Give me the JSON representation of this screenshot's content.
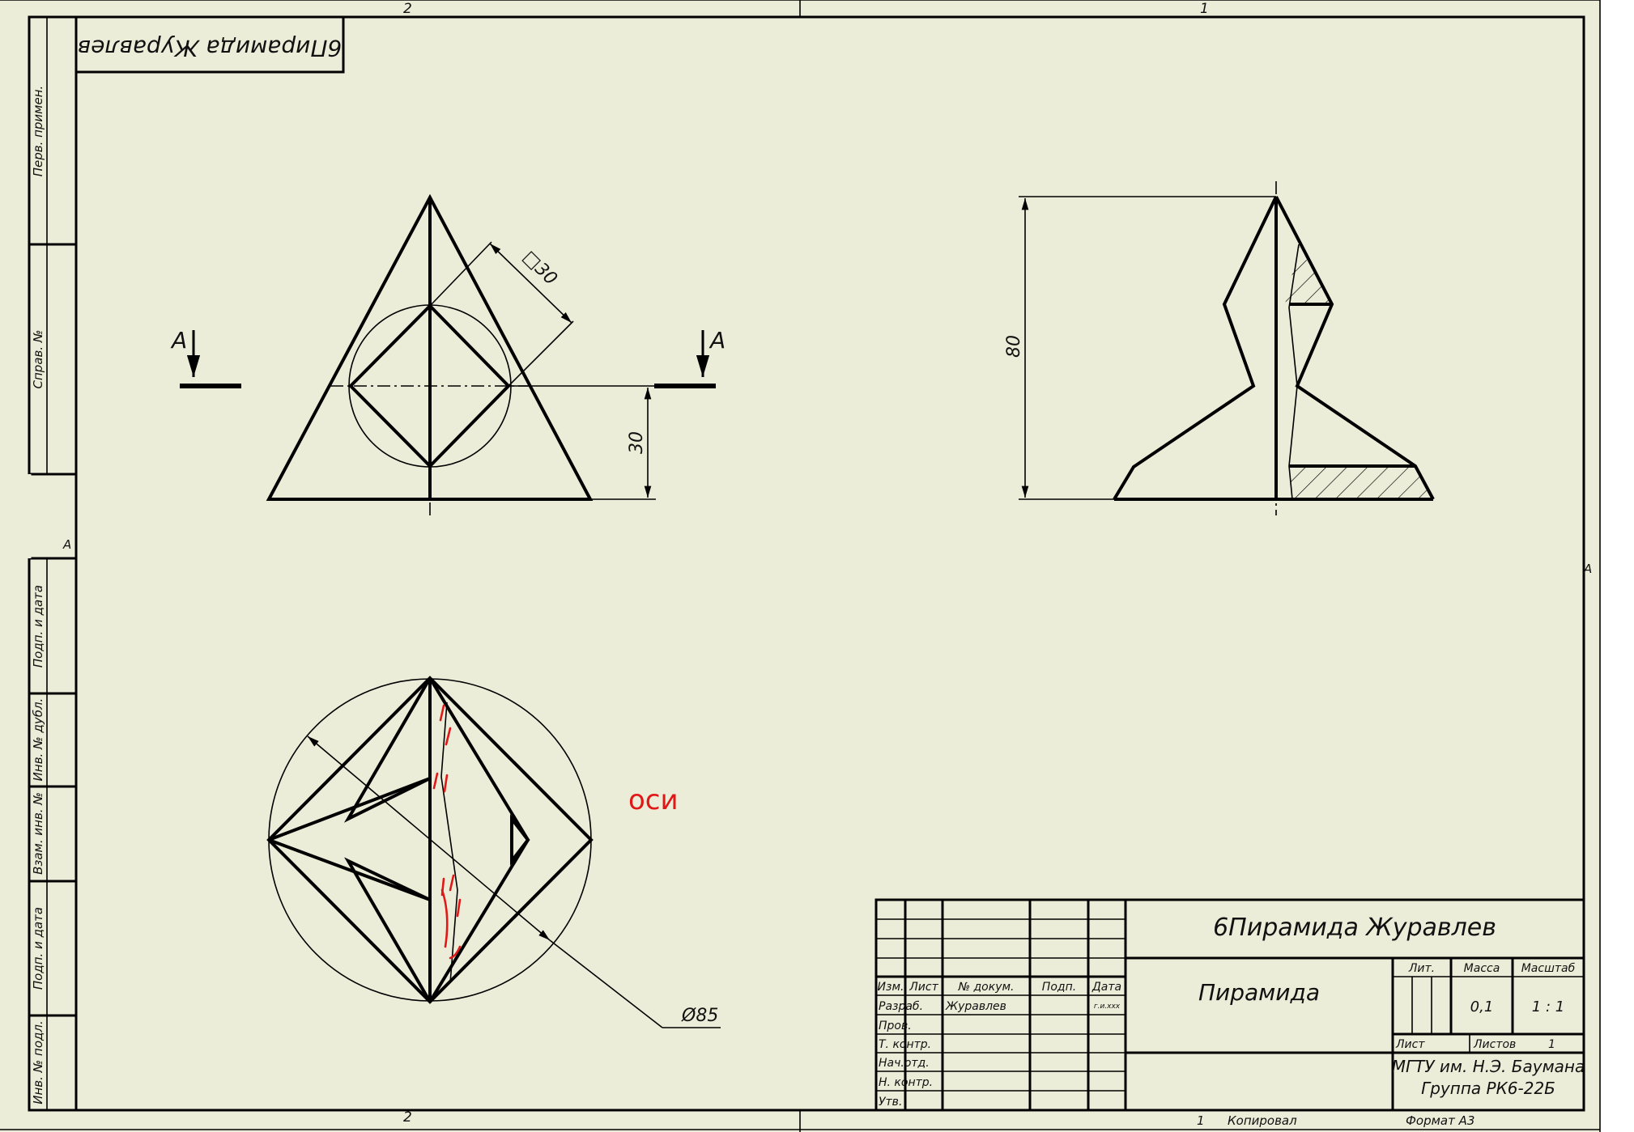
{
  "sheet": {
    "zone_top_left": "2",
    "zone_top_right": "1",
    "zone_bottom_left": "2",
    "zone_side": "A",
    "mirrored_stamp": "6Пирамида Журавлев"
  },
  "side_strip": {
    "perv_primen": "Перв. примен.",
    "sprav_no": "Справ. №",
    "podp_data_1": "Подп. и дата",
    "inv_dubl": "Инв. № дубл.",
    "vzam_inv": "Взам. инв. №",
    "podp_data_2": "Подп. и дата",
    "inv_podl": "Инв. № подл."
  },
  "drawing": {
    "section_left": "A",
    "section_right": "A",
    "dim_square": "□30",
    "dim_30": "30",
    "dim_80": "80",
    "dim_diameter": "Ø85",
    "note_red": "оси"
  },
  "title_block": {
    "designation": "6Пирамида Журавлев",
    "name": "Пирамида",
    "col_izm": "Изм.",
    "col_list": "Лист",
    "col_docum": "№ докум.",
    "col_podp": "Подп.",
    "col_data": "Дата",
    "date_hint": "г.и.ххх",
    "row_razrab": "Разраб.",
    "author": "Журавлев",
    "row_prov": "Пров.",
    "row_tkontr": "Т. контр.",
    "row_nachotd": "Нач.отд.",
    "row_nkontr": "Н. контр.",
    "row_utv": "Утв.",
    "lit_label": "Лит.",
    "mass_label": "Масса",
    "scale_label": "Масштаб",
    "mass_value": "0,1",
    "scale_value": "1 : 1",
    "sheet_label": "Лист",
    "sheets_label": "Листов",
    "sheets_value": "1",
    "org_line1": "МГТУ им. Н.Э. Баумана",
    "org_line2": "Группа РК6-22Б"
  },
  "footer": {
    "sheet_number": "1",
    "copied": "Копировал",
    "format": "Формат А3"
  },
  "colors": {
    "paper": "#ecedd8",
    "line": "#000000",
    "annotation": "#e01818"
  }
}
